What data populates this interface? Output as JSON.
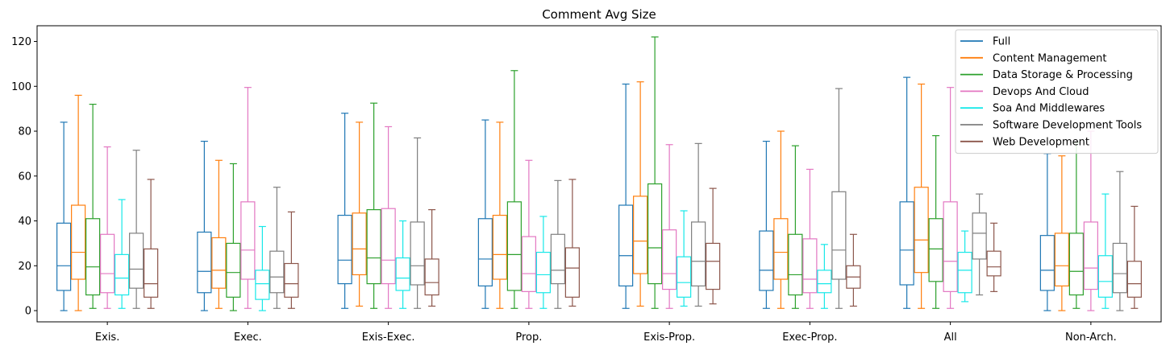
{
  "chart_data": {
    "type": "boxplot",
    "title": "Comment Avg Size",
    "xlabel": "",
    "ylabel": "",
    "ylim": [
      -5,
      127
    ],
    "yticks": [
      0,
      20,
      40,
      60,
      80,
      100,
      120
    ],
    "legend_position": "top-right",
    "categories": [
      "Exis.",
      "Exec.",
      "Exis-Exec.",
      "Prop.",
      "Exis-Prop.",
      "Exec-Prop.",
      "All",
      "Non-Arch."
    ],
    "series": [
      {
        "name": "Full",
        "color": "#1f77b4",
        "boxes": [
          {
            "whislo": 0,
            "q1": 9,
            "med": 20,
            "q3": 39,
            "whishi": 84
          },
          {
            "whislo": 0,
            "q1": 8,
            "med": 17.5,
            "q3": 35,
            "whishi": 75.5
          },
          {
            "whislo": 1,
            "q1": 12,
            "med": 22.5,
            "q3": 42.5,
            "whishi": 88
          },
          {
            "whislo": 1,
            "q1": 11,
            "med": 23,
            "q3": 41,
            "whishi": 85
          },
          {
            "whislo": 1,
            "q1": 11,
            "med": 24.5,
            "q3": 47,
            "whishi": 101
          },
          {
            "whislo": 1,
            "q1": 9,
            "med": 18,
            "q3": 35.5,
            "whishi": 75.5
          },
          {
            "whislo": 1,
            "q1": 11.5,
            "med": 27,
            "q3": 48.5,
            "whishi": 104
          },
          {
            "whislo": 0,
            "q1": 9,
            "med": 18,
            "q3": 33.5,
            "whishi": 70
          }
        ]
      },
      {
        "name": "Content Management",
        "color": "#ff7f0e",
        "boxes": [
          {
            "whislo": 0,
            "q1": 14,
            "med": 26,
            "q3": 47,
            "whishi": 96
          },
          {
            "whislo": 1,
            "q1": 10,
            "med": 18,
            "q3": 32.5,
            "whishi": 67
          },
          {
            "whislo": 2,
            "q1": 16,
            "med": 27.5,
            "q3": 43.5,
            "whishi": 84
          },
          {
            "whislo": 1,
            "q1": 14,
            "med": 25,
            "q3": 42.5,
            "whishi": 84
          },
          {
            "whislo": 2,
            "q1": 16.5,
            "med": 31,
            "q3": 51,
            "whishi": 102
          },
          {
            "whislo": 1,
            "q1": 14,
            "med": 26,
            "q3": 41,
            "whishi": 80
          },
          {
            "whislo": 1,
            "q1": 17,
            "med": 31.5,
            "q3": 55,
            "whishi": 101
          },
          {
            "whislo": 0,
            "q1": 11,
            "med": 20,
            "q3": 34.5,
            "whishi": 69
          }
        ]
      },
      {
        "name": "Data Storage & Processing",
        "color": "#2ca02c",
        "boxes": [
          {
            "whislo": 1,
            "q1": 7,
            "med": 19.5,
            "q3": 41,
            "whishi": 92
          },
          {
            "whislo": 0,
            "q1": 6,
            "med": 17,
            "q3": 30,
            "whishi": 65.5
          },
          {
            "whislo": 1,
            "q1": 12,
            "med": 23.5,
            "q3": 45,
            "whishi": 92.5
          },
          {
            "whislo": 1,
            "q1": 9,
            "med": 25,
            "q3": 48.5,
            "whishi": 107
          },
          {
            "whislo": 1,
            "q1": 12,
            "med": 28,
            "q3": 56.5,
            "whishi": 122
          },
          {
            "whislo": 1,
            "q1": 7,
            "med": 16,
            "q3": 34,
            "whishi": 73.5
          },
          {
            "whislo": 1,
            "q1": 13,
            "med": 27.5,
            "q3": 41,
            "whishi": 78
          },
          {
            "whislo": 1,
            "q1": 7,
            "med": 17.5,
            "q3": 34.5,
            "whishi": 75
          }
        ]
      },
      {
        "name": "Devops And Cloud",
        "color": "#e377c2",
        "boxes": [
          {
            "whislo": 1,
            "q1": 8,
            "med": 16.5,
            "q3": 34,
            "whishi": 73
          },
          {
            "whislo": 1,
            "q1": 14,
            "med": 27,
            "q3": 48.5,
            "whishi": 99.5
          },
          {
            "whislo": 1,
            "q1": 12,
            "med": 22.5,
            "q3": 45.5,
            "whishi": 82
          },
          {
            "whislo": 1,
            "q1": 8.5,
            "med": 16.5,
            "q3": 33,
            "whishi": 67
          },
          {
            "whislo": 1,
            "q1": 9.5,
            "med": 16.5,
            "q3": 36,
            "whishi": 74
          },
          {
            "whislo": 1,
            "q1": 8,
            "med": 14,
            "q3": 32,
            "whishi": 63
          },
          {
            "whislo": 1,
            "q1": 8.5,
            "med": 22,
            "q3": 48.5,
            "whishi": 99.5
          },
          {
            "whislo": 0,
            "q1": 9.5,
            "med": 19,
            "q3": 39.5,
            "whishi": 80
          }
        ]
      },
      {
        "name": "Soa And Middlewares",
        "color": "#17e8e8",
        "boxes": [
          {
            "whislo": 1,
            "q1": 7,
            "med": 14.5,
            "q3": 25,
            "whishi": 49.5
          },
          {
            "whislo": 0,
            "q1": 5,
            "med": 12,
            "q3": 18,
            "whishi": 37.5
          },
          {
            "whislo": 1,
            "q1": 9,
            "med": 14.5,
            "q3": 23.5,
            "whishi": 40
          },
          {
            "whislo": 1,
            "q1": 8,
            "med": 16,
            "q3": 26,
            "whishi": 42
          },
          {
            "whislo": 2,
            "q1": 6,
            "med": 12.5,
            "q3": 24,
            "whishi": 44.5
          },
          {
            "whislo": 1,
            "q1": 8,
            "med": 12,
            "q3": 18,
            "whishi": 29.5
          },
          {
            "whislo": 4,
            "q1": 8,
            "med": 18,
            "q3": 26,
            "whishi": 35.5
          },
          {
            "whislo": 1,
            "q1": 6,
            "med": 13,
            "q3": 24.5,
            "whishi": 52
          }
        ]
      },
      {
        "name": "Software Development Tools",
        "color": "#7f7f7f",
        "boxes": [
          {
            "whislo": 1,
            "q1": 10,
            "med": 18.5,
            "q3": 34.5,
            "whishi": 71.5
          },
          {
            "whislo": 1,
            "q1": 8,
            "med": 15,
            "q3": 26.5,
            "whishi": 55
          },
          {
            "whislo": 1,
            "q1": 11.5,
            "med": 20,
            "q3": 39.5,
            "whishi": 77
          },
          {
            "whislo": 1,
            "q1": 12,
            "med": 18,
            "q3": 34,
            "whishi": 58
          },
          {
            "whislo": 2,
            "q1": 11,
            "med": 22,
            "q3": 39.5,
            "whishi": 74.5
          },
          {
            "whislo": 1,
            "q1": 14,
            "med": 27,
            "q3": 53,
            "whishi": 99
          },
          {
            "whislo": 7,
            "q1": 23,
            "med": 34.5,
            "q3": 43.5,
            "whishi": 52
          },
          {
            "whislo": 0,
            "q1": 8,
            "med": 16.5,
            "q3": 30,
            "whishi": 62
          }
        ]
      },
      {
        "name": "Web Development",
        "color": "#8c564b",
        "boxes": [
          {
            "whislo": 1,
            "q1": 6,
            "med": 12,
            "q3": 27.5,
            "whishi": 58.5
          },
          {
            "whislo": 1,
            "q1": 6,
            "med": 12,
            "q3": 21,
            "whishi": 44
          },
          {
            "whislo": 2,
            "q1": 7,
            "med": 12.5,
            "q3": 23,
            "whishi": 45
          },
          {
            "whislo": 2,
            "q1": 6,
            "med": 19,
            "q3": 28,
            "whishi": 58.5
          },
          {
            "whislo": 3,
            "q1": 9.5,
            "med": 22,
            "q3": 30,
            "whishi": 54.5
          },
          {
            "whislo": 2,
            "q1": 10,
            "med": 15,
            "q3": 20,
            "whishi": 34
          },
          {
            "whislo": 8.5,
            "q1": 15.5,
            "med": 19.5,
            "q3": 26.5,
            "whishi": 39
          },
          {
            "whislo": 1,
            "q1": 6,
            "med": 12,
            "q3": 22,
            "whishi": 46.5
          }
        ]
      }
    ]
  }
}
